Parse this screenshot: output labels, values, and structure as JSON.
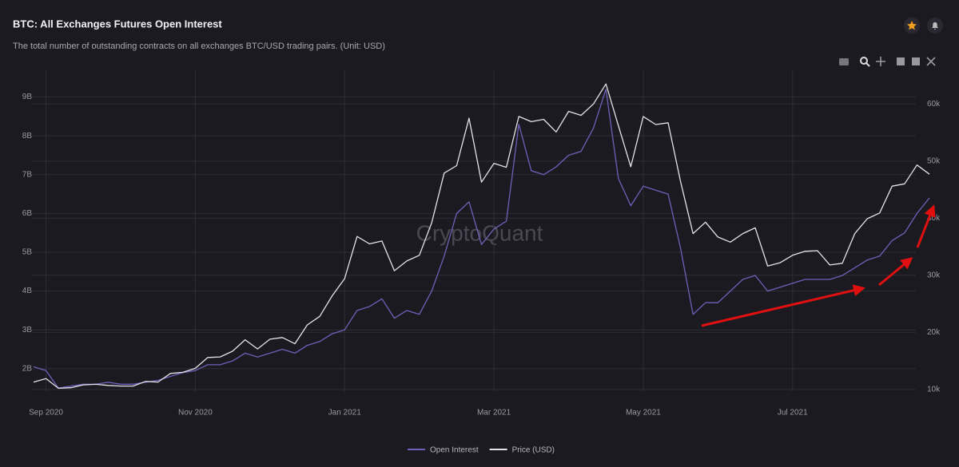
{
  "chart_data": {
    "type": "line",
    "title": "BTC: All Exchanges Futures Open Interest",
    "subtitle": "The total number of outstanding contracts on all exchanges BTC/USD trading pairs. (Unit: USD)",
    "watermark": "CryptoQuant",
    "categories": [
      null,
      "Sep 2020",
      null,
      null,
      null,
      null,
      null,
      null,
      null,
      null,
      null,
      null,
      null,
      "Nov 2020",
      null,
      null,
      null,
      null,
      null,
      null,
      null,
      null,
      null,
      null,
      null,
      "Jan 2021",
      null,
      null,
      null,
      null,
      null,
      null,
      null,
      null,
      null,
      null,
      null,
      "Mar 2021",
      null,
      null,
      null,
      null,
      null,
      null,
      null,
      null,
      null,
      null,
      null,
      "May 2021",
      null,
      null,
      null,
      null,
      null,
      null,
      null,
      null,
      null,
      null,
      null,
      "Jul 2021",
      null,
      null,
      null,
      null,
      null,
      null,
      null,
      null,
      null,
      null,
      null
    ],
    "series": [
      {
        "name": "Open Interest",
        "color": "#6c62b8",
        "axis": "y",
        "values": [
          2.05,
          1.95,
          1.5,
          1.55,
          1.6,
          1.6,
          1.65,
          1.6,
          1.6,
          1.65,
          1.7,
          1.8,
          1.9,
          1.95,
          2.1,
          2.1,
          2.2,
          2.4,
          2.3,
          2.4,
          2.5,
          2.4,
          2.6,
          2.7,
          2.9,
          3.0,
          3.5,
          3.6,
          3.8,
          3.3,
          3.5,
          3.4,
          4.0,
          4.9,
          6.0,
          6.3,
          5.2,
          5.6,
          5.8,
          8.3,
          7.1,
          7.0,
          7.2,
          7.5,
          7.6,
          8.2,
          9.2,
          6.9,
          6.2,
          6.7,
          6.6,
          6.5,
          5.1,
          3.4,
          3.7,
          3.7,
          4.0,
          4.3,
          4.4,
          4.0,
          4.1,
          4.2,
          4.3,
          4.3,
          4.3,
          4.4,
          4.6,
          4.8,
          4.9,
          5.3,
          5.5,
          6.0,
          6.4
        ]
      },
      {
        "name": "Price (USD)",
        "color": "#e4e4e8",
        "axis": "y2",
        "values": [
          11.3,
          11.9,
          10.2,
          10.3,
          10.8,
          10.9,
          10.7,
          10.6,
          10.6,
          11.4,
          11.3,
          12.8,
          13.0,
          13.7,
          15.6,
          15.7,
          16.7,
          18.7,
          17.1,
          18.8,
          19.1,
          18.0,
          21.3,
          22.8,
          26.4,
          29.4,
          36.8,
          35.5,
          36.0,
          30.8,
          32.5,
          33.5,
          39.2,
          47.9,
          49.2,
          57.5,
          46.3,
          49.6,
          48.9,
          57.8,
          56.9,
          57.3,
          55.1,
          58.7,
          58.0,
          60.0,
          63.5,
          56.2,
          49.0,
          57.8,
          56.4,
          56.7,
          46.4,
          37.3,
          39.3,
          36.7,
          35.8,
          37.3,
          38.3,
          31.6,
          32.2,
          33.5,
          34.2,
          34.3,
          31.8,
          32.1,
          37.3,
          39.9,
          40.9,
          45.6,
          46.0,
          49.3,
          47.7
        ]
      }
    ],
    "ylim": [
      1.42,
      9.69
    ],
    "yticks": [
      {
        "value": 2,
        "label": "2B"
      },
      {
        "value": 3,
        "label": "3B"
      },
      {
        "value": 4,
        "label": "4B"
      },
      {
        "value": 5,
        "label": "5B"
      },
      {
        "value": 6,
        "label": "6B"
      },
      {
        "value": 7,
        "label": "7B"
      },
      {
        "value": 8,
        "label": "8B"
      },
      {
        "value": 9,
        "label": "9B"
      }
    ],
    "y2lim": [
      9.7,
      65.9
    ],
    "y2ticks": [
      {
        "value": 10,
        "label": "10k"
      },
      {
        "value": 20,
        "label": "20k"
      },
      {
        "value": 30,
        "label": "30k"
      },
      {
        "value": 40,
        "label": "40k"
      },
      {
        "value": 50,
        "label": "50k"
      },
      {
        "value": 60,
        "label": "60k"
      }
    ],
    "grid": true,
    "legend": "bottom"
  }
}
